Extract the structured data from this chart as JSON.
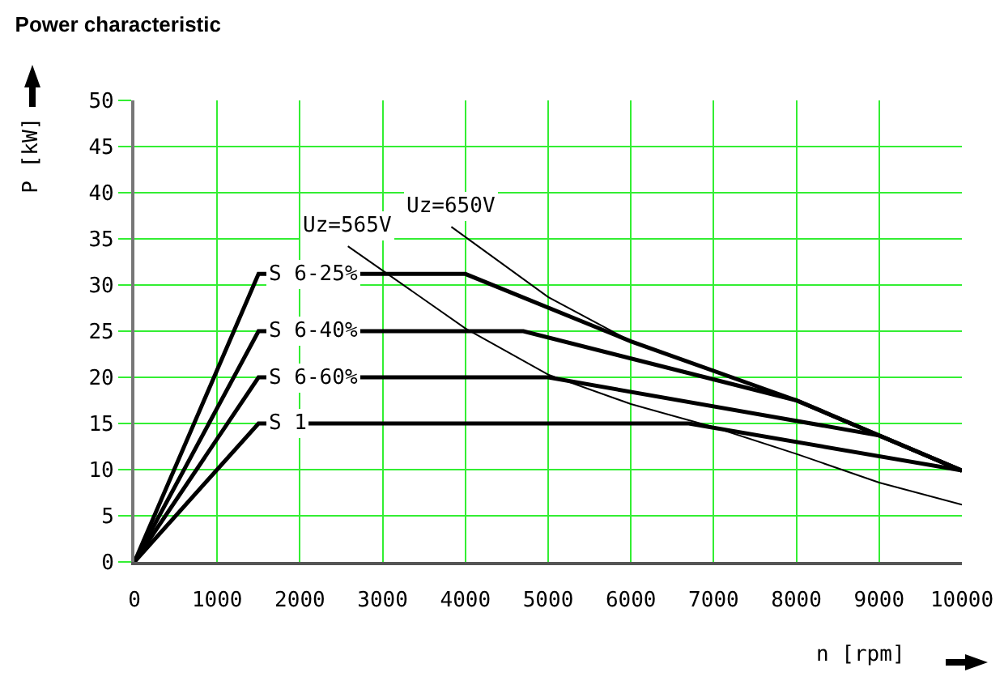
{
  "chart_data": {
    "type": "line",
    "title": "Power characteristic",
    "xlabel": "n [rpm]",
    "ylabel": "P [kW]",
    "xlim": [
      0,
      10000
    ],
    "ylim": [
      0,
      50
    ],
    "xticks": [
      0,
      1000,
      2000,
      3000,
      4000,
      5000,
      6000,
      7000,
      8000,
      9000,
      10000
    ],
    "yticks": [
      0,
      5,
      10,
      15,
      20,
      25,
      30,
      35,
      40,
      45,
      50
    ],
    "grid": true,
    "legend": false,
    "marker": "none",
    "line_style": "solid",
    "series": [
      {
        "name": "S 6-25%",
        "color": "#000000",
        "x": [
          0,
          1500,
          4000,
          6000,
          8000,
          10000
        ],
        "values": [
          0,
          31.2,
          31.2,
          23.9,
          17.5,
          9.9
        ]
      },
      {
        "name": "S 6-40%",
        "color": "#000000",
        "x": [
          0,
          1500,
          4700,
          8000,
          10000
        ],
        "values": [
          0,
          25,
          25,
          17.5,
          9.9
        ]
      },
      {
        "name": "S 6-60%",
        "color": "#000000",
        "x": [
          0,
          1500,
          5000,
          9000,
          10000
        ],
        "values": [
          0,
          20,
          20,
          13.7,
          9.9
        ]
      },
      {
        "name": "S 1",
        "color": "#000000",
        "x": [
          0,
          1500,
          6700,
          10000
        ],
        "values": [
          0,
          15,
          15,
          9.9
        ]
      },
      {
        "name": "Uz=565V",
        "color": "#000000",
        "x": [
          2580,
          4000,
          5000,
          6000,
          7000,
          8000,
          9000,
          10000
        ],
        "values": [
          34.2,
          25.3,
          20.3,
          17.1,
          14.6,
          11.7,
          8.6,
          6.2
        ]
      },
      {
        "name": "Uz=650V",
        "color": "#000000",
        "x": [
          3830,
          5000,
          6000,
          8000,
          10000
        ],
        "values": [
          36.3,
          28.7,
          23.9,
          17.5,
          9.9
        ]
      }
    ]
  }
}
